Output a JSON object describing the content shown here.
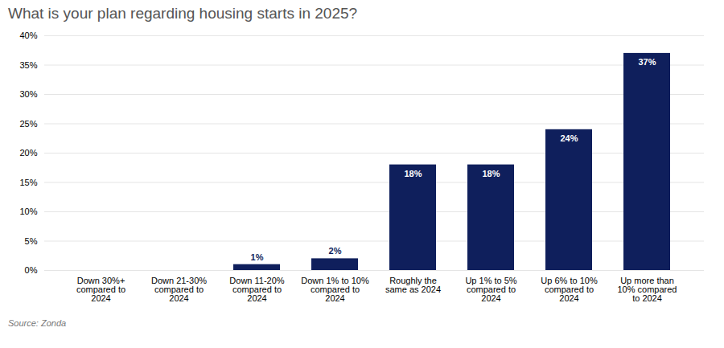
{
  "chart_data": {
    "type": "bar",
    "title": "What is your plan regarding housing starts in 2025?",
    "source": "Source: Zonda",
    "categories": [
      "Down 30%+\ncompared to\n2024",
      "Down 21-30%\ncompared to\n2024",
      "Down 11-20%\ncompared to\n2024",
      "Down 1% to 10%\ncompared to\n2024",
      "Roughly the\nsame as 2024",
      "Up 1% to 5%\ncompared to\n2024",
      "Up 6% to 10%\ncompared to\n2024",
      "Up more than\n10% compared\nto 2024"
    ],
    "values": [
      0,
      0,
      1,
      2,
      18,
      18,
      24,
      37
    ],
    "value_labels": [
      null,
      null,
      "1%",
      "2%",
      "18%",
      "18%",
      "24%",
      "37%"
    ],
    "data_labels": true,
    "color": "#0f1f5c",
    "ylim": [
      0,
      40
    ],
    "yticks": [
      {
        "value": 0,
        "label": "0%"
      },
      {
        "value": 5,
        "label": "5%"
      },
      {
        "value": 10,
        "label": "10%"
      },
      {
        "value": 15,
        "label": "15%"
      },
      {
        "value": 20,
        "label": "20%"
      },
      {
        "value": 25,
        "label": "25%"
      },
      {
        "value": 30,
        "label": "30%"
      },
      {
        "value": 35,
        "label": "35%"
      },
      {
        "value": 40,
        "label": "40%"
      }
    ],
    "grid": true
  }
}
